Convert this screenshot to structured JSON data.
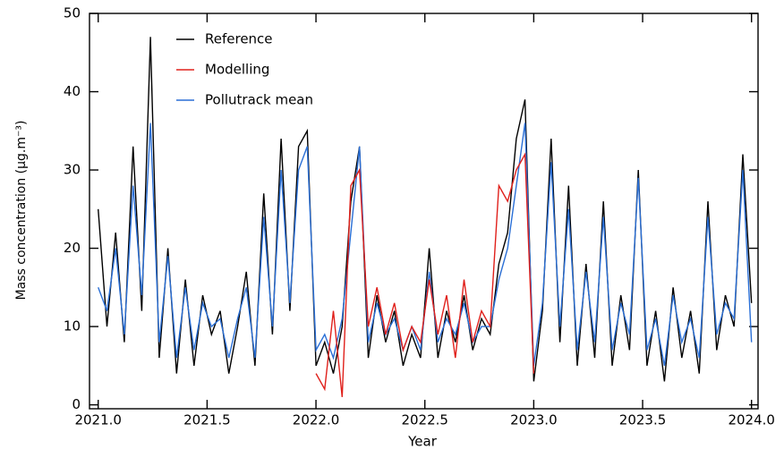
{
  "chart_data": {
    "type": "line",
    "x_label": "Year",
    "y_label": "Mass concentration (µg.m⁻³)",
    "x": [
      2021.0,
      2021.04,
      2021.08,
      2021.12,
      2021.16,
      2021.2,
      2021.24,
      2021.28,
      2021.32,
      2021.36,
      2021.4,
      2021.44,
      2021.48,
      2021.52,
      2021.56,
      2021.6,
      2021.64,
      2021.68,
      2021.72,
      2021.76,
      2021.8,
      2021.84,
      2021.88,
      2021.92,
      2021.96,
      2022.0,
      2022.04,
      2022.08,
      2022.12,
      2022.16,
      2022.2,
      2022.24,
      2022.28,
      2022.32,
      2022.36,
      2022.4,
      2022.44,
      2022.48,
      2022.52,
      2022.56,
      2022.6,
      2022.64,
      2022.68,
      2022.72,
      2022.76,
      2022.8,
      2022.84,
      2022.88,
      2022.92,
      2022.96,
      2023.0,
      2023.04,
      2023.08,
      2023.12,
      2023.16,
      2023.2,
      2023.24,
      2023.28,
      2023.32,
      2023.36,
      2023.4,
      2023.44,
      2023.48,
      2023.52,
      2023.56,
      2023.6,
      2023.64,
      2023.68,
      2023.72,
      2023.76,
      2023.8,
      2023.84,
      2023.88,
      2023.92,
      2023.96,
      2024.0
    ],
    "series": [
      {
        "name": "Reference",
        "color": "#000000",
        "values": [
          25,
          10,
          22,
          8,
          33,
          12,
          47,
          6,
          20,
          4,
          16,
          5,
          14,
          9,
          12,
          4,
          10,
          17,
          5,
          27,
          9,
          34,
          12,
          33,
          35,
          5,
          8,
          4,
          10,
          26,
          33,
          6,
          14,
          8,
          12,
          5,
          9,
          6,
          20,
          6,
          12,
          8,
          14,
          7,
          11,
          9,
          18,
          22,
          34,
          39,
          3,
          12,
          34,
          8,
          28,
          5,
          18,
          6,
          26,
          5,
          14,
          7,
          30,
          5,
          12,
          3,
          15,
          6,
          12,
          4,
          26,
          7,
          14,
          10,
          32,
          13
        ]
      },
      {
        "name": "Modelling",
        "color": "#e0201b",
        "values": [
          null,
          null,
          null,
          null,
          null,
          null,
          null,
          null,
          null,
          null,
          null,
          null,
          null,
          null,
          null,
          null,
          null,
          null,
          null,
          null,
          null,
          null,
          null,
          null,
          null,
          4,
          2,
          12,
          1,
          28,
          30,
          10,
          15,
          9,
          13,
          7,
          10,
          8,
          16,
          9,
          14,
          6,
          16,
          8,
          12,
          10,
          28,
          26,
          30,
          32,
          4,
          null,
          null,
          null,
          null,
          null,
          null,
          null,
          null,
          null,
          null,
          null,
          null,
          null,
          null,
          null,
          null,
          null,
          null,
          null,
          null,
          null,
          null,
          null,
          null,
          null
        ]
      },
      {
        "name": "Pollutrack mean",
        "color": "#2a6fd6",
        "values": [
          15,
          12,
          20,
          9,
          28,
          14,
          36,
          8,
          19,
          6,
          15,
          7,
          13,
          10,
          11,
          6,
          11,
          15,
          6,
          24,
          10,
          30,
          13,
          30,
          33,
          7,
          9,
          6,
          11,
          22,
          33,
          8,
          13,
          9,
          11,
          7,
          10,
          7,
          17,
          8,
          11,
          9,
          13,
          8,
          10,
          10,
          16,
          20,
          28,
          36,
          5,
          13,
          31,
          10,
          25,
          7,
          17,
          8,
          24,
          7,
          13,
          9,
          29,
          7,
          11,
          5,
          14,
          8,
          11,
          6,
          24,
          9,
          13,
          11,
          30,
          8
        ]
      }
    ],
    "xlim": [
      2020.96,
      2024.03
    ],
    "ylim": [
      -0.5,
      50
    ],
    "xticks": [
      {
        "value": 2021,
        "label": "2021.0"
      },
      {
        "value": 2021.5,
        "label": "2021.5"
      },
      {
        "value": 2022,
        "label": "2022.0"
      },
      {
        "value": 2022.5,
        "label": "2022.5"
      },
      {
        "value": 2023,
        "label": "2023.0"
      },
      {
        "value": 2023.5,
        "label": "2023.5"
      },
      {
        "value": 2024,
        "label": "2024.0"
      }
    ],
    "yticks": [
      0,
      10,
      20,
      30,
      40,
      50
    ],
    "legend": "upper left",
    "grid": false
  }
}
